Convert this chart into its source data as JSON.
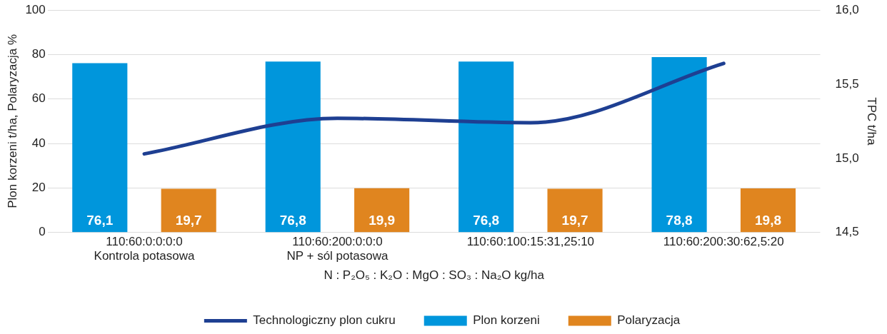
{
  "chart_data": {
    "type": "bar",
    "xlabel": "N : P₂O₅ : K₂O : MgO : SO₃ : Na₂O kg/ha",
    "ylabel": "Plon korzeni t/ha, Polaryzacja %",
    "y2label": "TPC t/ha",
    "categories": [
      "110:60:0:0:0:0\nKontrola potasowa",
      "110:60:200:0:0:0\nNP + sól potasowa",
      "110:60:100:15:31,25:10",
      "110:60:200:30:62,5:20"
    ],
    "series": [
      {
        "name": "Plon korzeni",
        "color": "#0096dc",
        "values": [
          76.1,
          76.8,
          76.8,
          78.8
        ],
        "value_labels": [
          "76,1",
          "76,8",
          "76,8",
          "78,8"
        ]
      },
      {
        "name": "Polaryzacja",
        "color": "#e0851f",
        "values": [
          19.7,
          19.9,
          19.7,
          19.8
        ],
        "value_labels": [
          "19,7",
          "19,9",
          "19,7",
          "19,8"
        ]
      },
      {
        "name": "Technologiczny plon cukru",
        "type": "line",
        "axis": "y2",
        "color": "#1e3f92",
        "values": [
          15.03,
          15.27,
          15.24,
          15.64
        ]
      }
    ],
    "ylim": [
      0,
      100
    ],
    "yticks": [
      0,
      20,
      40,
      60,
      80,
      100
    ],
    "y2lim": [
      14.5,
      16
    ],
    "y2ticks": [
      {
        "value": 14.5,
        "label": "14,5"
      },
      {
        "value": 15,
        "label": "15,0"
      },
      {
        "value": 15.5,
        "label": "15,5"
      },
      {
        "value": 16,
        "label": "16,0"
      }
    ],
    "grid": "y",
    "legend": "bottom",
    "marker": "none",
    "line_style": "solid"
  }
}
